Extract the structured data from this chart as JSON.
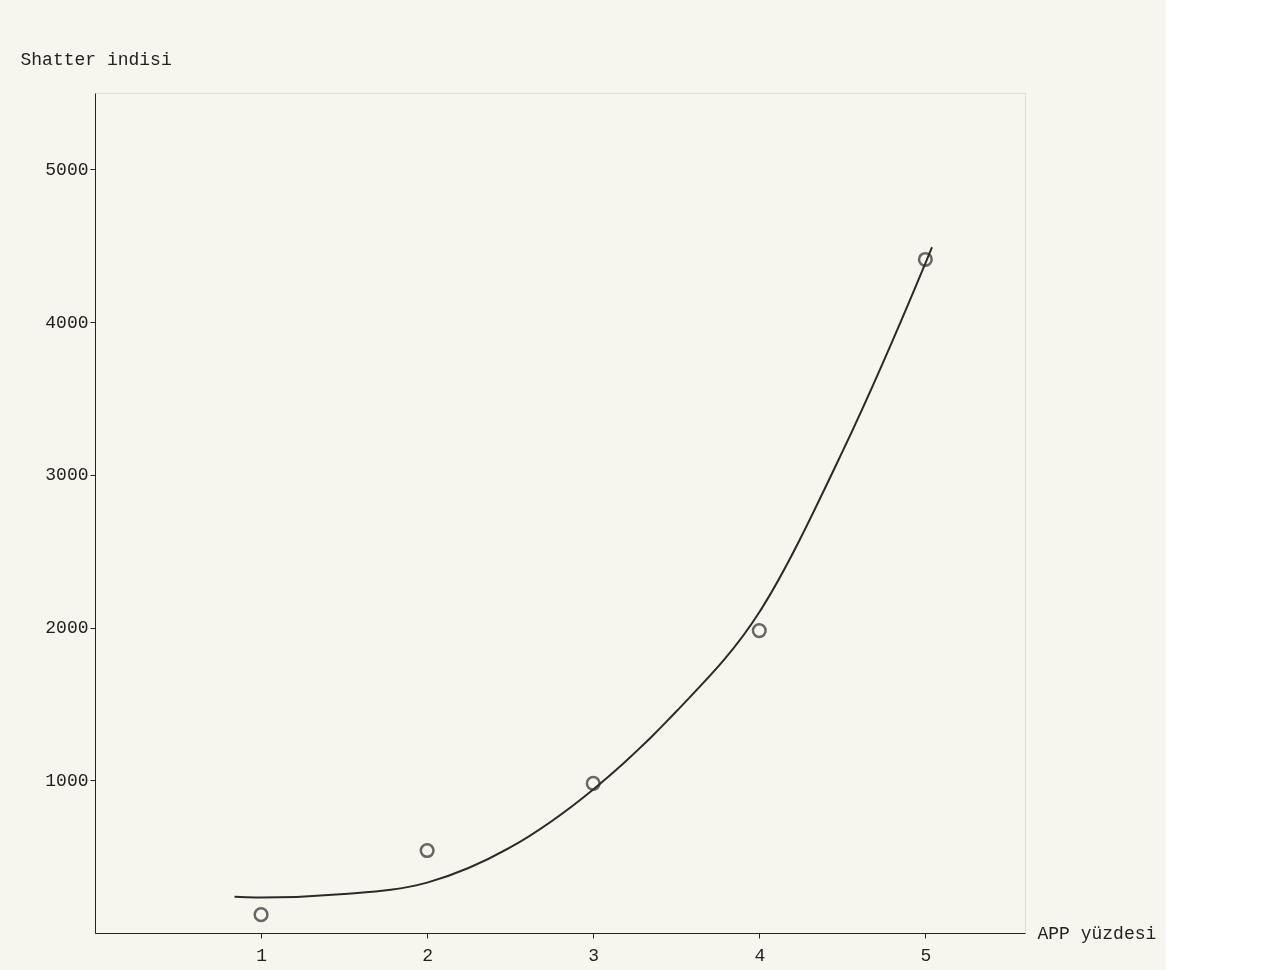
{
  "chart_data": {
    "type": "scatter",
    "xlabel": "APP yüzdesi",
    "ylabel": "Shatter indisi",
    "xlim": [
      0,
      5.6
    ],
    "ylim": [
      0,
      5500
    ],
    "xticks": [
      1,
      2,
      3,
      4,
      5
    ],
    "yticks": [
      1000,
      2000,
      3000,
      4000,
      5000
    ],
    "grid": false,
    "series": [
      {
        "marker": "circle",
        "color": "#2a2a2a",
        "x": [
          1,
          2,
          3,
          4,
          5
        ],
        "values": [
          120,
          540,
          980,
          1980,
          4410
        ]
      },
      {
        "type": "line",
        "line_style": "solid",
        "color": "#2a2a2a",
        "x": [
          0.84,
          1,
          1.5,
          2,
          2.5,
          3,
          3.5,
          4,
          4.5,
          5,
          5.04
        ],
        "values": [
          237,
          232,
          255,
          330,
          560,
          940,
          1450,
          2100,
          3150,
          4385,
          4490
        ]
      }
    ]
  }
}
